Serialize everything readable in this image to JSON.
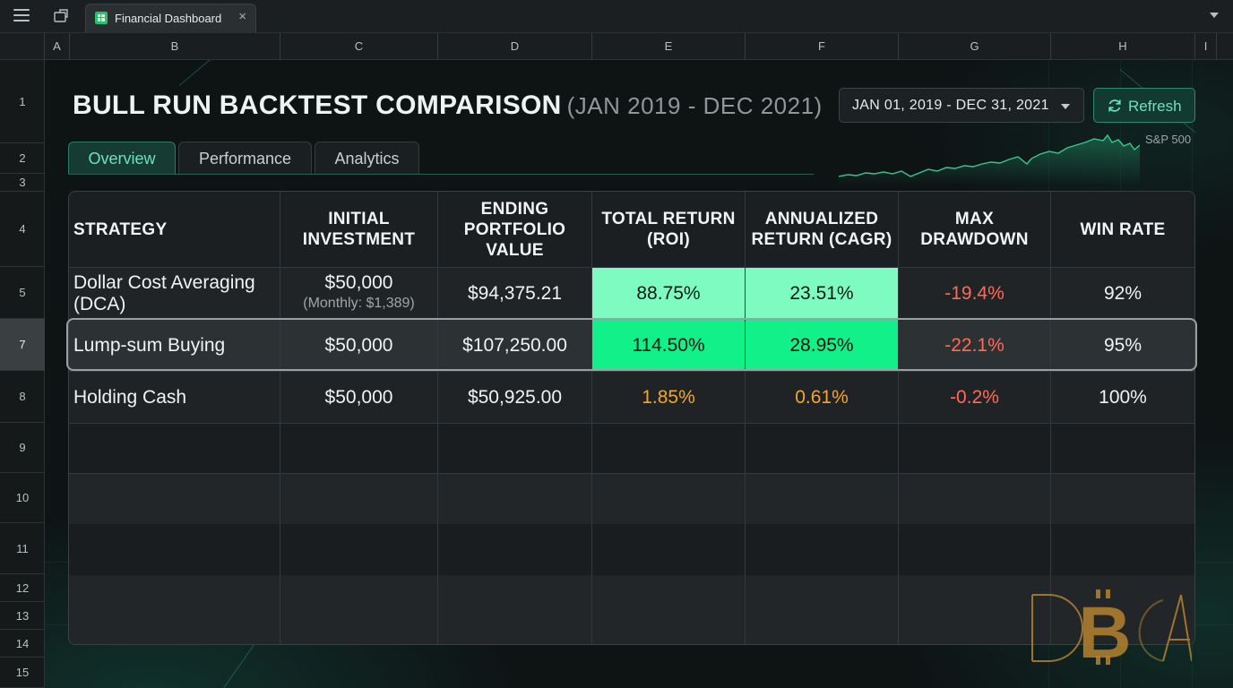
{
  "tab": {
    "title": "Financial Dashboard",
    "close": "×"
  },
  "columns": [
    "A",
    "B",
    "C",
    "D",
    "E",
    "F",
    "G",
    "H",
    "I"
  ],
  "rows": [
    "1",
    "2",
    "3",
    "4",
    "5",
    "7",
    "8",
    "9",
    "10",
    "11",
    "12",
    "13",
    "14",
    "15"
  ],
  "active_row": "7",
  "dashboard": {
    "title": "BULL RUN BACKTEST COMPARISON",
    "subtitle": "(JAN 2019 - DEC 2021)",
    "tabs": [
      "Overview",
      "Performance",
      "Analytics"
    ],
    "active_tab": "Overview",
    "date_range": "JAN 01, 2019 - DEC 31, 2021",
    "refresh_label": "Refresh",
    "sparkline_label": "S&P 500"
  },
  "table": {
    "headers": [
      "STRATEGY",
      "INITIAL\nINVESTMENT",
      "ENDING\nPORTFOLIO\nVALUE",
      "TOTAL RETURN\n(ROI)",
      "ANNUALIZED\nRETURN (CAGR)",
      "MAX\nDRAWDOWN",
      "WIN RATE"
    ],
    "rows": [
      {
        "strategy": "Dollar Cost Averaging\n(DCA)",
        "initial": "$50,000",
        "initial_note": "(Monthly: $1,389)",
        "ending": "$94,375.21",
        "roi": "88.75%",
        "cagr": "23.51%",
        "drawdown": "-19.4%",
        "win_rate": "92%"
      },
      {
        "strategy": "Lump-sum Buying",
        "initial": "$50,000",
        "initial_note": "",
        "ending": "$107,250.00",
        "roi": "114.50%",
        "cagr": "28.95%",
        "drawdown": "-22.1%",
        "win_rate": "95%"
      },
      {
        "strategy": "Holding Cash",
        "initial": "$50,000",
        "initial_note": "",
        "ending": "$50,925.00",
        "roi": "1.85%",
        "cagr": "0.61%",
        "drawdown": "-0.2%",
        "win_rate": "100%"
      }
    ]
  },
  "watermark": "DBA",
  "colors": {
    "accent": "#6fe0bd",
    "positive_light": "#7dfbc0",
    "positive_strong": "#12f08a",
    "negative": "#ff6b57",
    "warning": "#f3a531",
    "watermark": "#b5822e"
  },
  "icons": [
    "menu-icon",
    "new-tab-icon",
    "spreadsheet-icon",
    "close-icon",
    "chevron-down-icon",
    "refresh-icon",
    "bitcoin-icon"
  ]
}
